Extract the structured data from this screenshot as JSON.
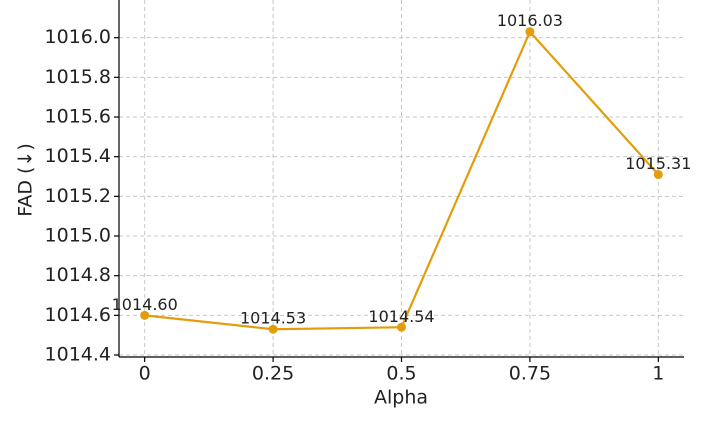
{
  "chart_data": {
    "type": "line",
    "x_label": "Alpha",
    "y_label": "FAD (↓)",
    "x": [
      0,
      0.25,
      0.5,
      0.75,
      1
    ],
    "series": [
      {
        "color": "#e39d0b",
        "values": [
          1014.6,
          1014.53,
          1014.54,
          1016.03,
          1015.31
        ],
        "value_labels": [
          "1014.60",
          "1014.53",
          "1014.54",
          "1016.03",
          "1015.31"
        ]
      }
    ],
    "xlim": [
      -0.05,
      1.05
    ],
    "xticks": [
      0,
      0.25,
      0.5,
      0.75,
      1
    ],
    "ylim": [
      1014.39,
      1016.19
    ],
    "yticks": [
      1014.4,
      1014.6,
      1014.8,
      {
        "value": 1015,
        "label": "1015.0"
      },
      1015.2,
      1015.4,
      1015.6,
      1015.8,
      {
        "value": 1016,
        "label": "1016.0"
      }
    ],
    "grid": true
  }
}
